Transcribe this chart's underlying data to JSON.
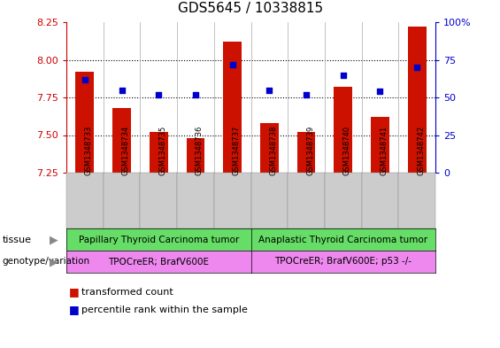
{
  "title": "GDS5645 / 10338815",
  "samples": [
    "GSM1348733",
    "GSM1348734",
    "GSM1348735",
    "GSM1348736",
    "GSM1348737",
    "GSM1348738",
    "GSM1348739",
    "GSM1348740",
    "GSM1348741",
    "GSM1348742"
  ],
  "transformed_count": [
    7.92,
    7.68,
    7.52,
    7.48,
    8.12,
    7.58,
    7.52,
    7.82,
    7.62,
    8.22
  ],
  "percentile_rank": [
    62,
    55,
    52,
    52,
    72,
    55,
    52,
    65,
    54,
    70
  ],
  "ylim_left": [
    7.25,
    8.25
  ],
  "ylim_right": [
    0,
    100
  ],
  "yticks_left": [
    7.25,
    7.5,
    7.75,
    8.0,
    8.25
  ],
  "yticks_right": [
    0,
    25,
    50,
    75,
    100
  ],
  "ytick_labels_right": [
    "0",
    "25",
    "50",
    "75",
    "100%"
  ],
  "bar_color": "#cc1100",
  "dot_color": "#0000cc",
  "tissue_group1": "Papillary Thyroid Carcinoma tumor",
  "tissue_group2": "Anaplastic Thyroid Carcinoma tumor",
  "genotype_group1": "TPOCreER; BrafV600E",
  "genotype_group2": "TPOCreER; BrafV600E; p53 -/-",
  "tissue_color": "#66dd66",
  "genotype_color": "#ee88ee",
  "n_group1": 5,
  "n_group2": 5,
  "legend_red": "transformed count",
  "legend_blue": "percentile rank within the sample",
  "left_tick_color": "#cc0000",
  "right_tick_color": "#0000cc",
  "xtick_bg_color": "#cccccc",
  "col_sep_color": "#aaaaaa"
}
